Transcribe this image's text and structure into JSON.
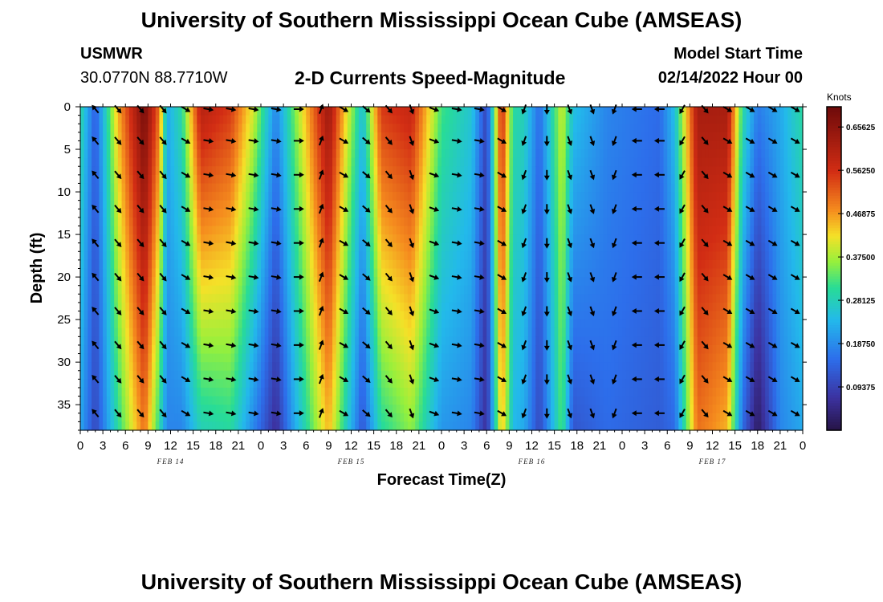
{
  "header": {
    "title": "University of Southern Mississippi Ocean Cube (AMSEAS)",
    "station": "USMWR",
    "coords": "30.0770N  88.7710W",
    "subtitle": "2-D Currents Speed-Magnitude",
    "model_start_label": "Model Start Time",
    "model_start_value": "02/14/2022 Hour 00"
  },
  "footer": {
    "title": "University of Southern Mississippi Ocean Cube (AMSEAS)"
  },
  "chart_data": {
    "type": "heatmap",
    "title": "2-D Currents Speed-Magnitude",
    "xlabel": "Forecast Time(Z)",
    "ylabel": "Depth (ft)",
    "x_hours_range": [
      0,
      96
    ],
    "ylim": [
      38,
      0
    ],
    "x_tick_labels": [
      "0",
      "3",
      "6",
      "9",
      "12",
      "15",
      "18",
      "21",
      "0",
      "3",
      "6",
      "9",
      "12",
      "15",
      "18",
      "21",
      "0",
      "3",
      "6",
      "9",
      "12",
      "15",
      "18",
      "21",
      "0",
      "3",
      "6",
      "9",
      "12",
      "15",
      "18",
      "21",
      "0"
    ],
    "y_ticks": [
      0,
      5,
      10,
      15,
      20,
      25,
      30,
      35
    ],
    "y_tick_labels": [
      "0",
      "5",
      "10",
      "15",
      "20",
      "25",
      "30",
      "35"
    ],
    "date_labels": [
      {
        "text": "FEB 14",
        "hour": 12
      },
      {
        "text": "FEB 15",
        "hour": 36
      },
      {
        "text": "FEB 16",
        "hour": 60
      },
      {
        "text": "FEB 17",
        "hour": 84
      }
    ],
    "colorbar": {
      "unit": "Knots",
      "range": [
        0,
        0.7
      ],
      "tick_values": [
        0.65625,
        0.5625,
        0.46875,
        0.375,
        0.28125,
        0.1875,
        0.09375
      ],
      "tick_labels": [
        "0.65625",
        "0.56250",
        "0.46875",
        "0.37500",
        "0.28125",
        "0.18750",
        "0.09375"
      ]
    },
    "speed_profile_knots": [
      {
        "hour": 0,
        "surface": 0.3,
        "bottom": 0.22
      },
      {
        "hour": 2,
        "surface": 0.13,
        "bottom": 0.1
      },
      {
        "hour": 5,
        "surface": 0.45,
        "bottom": 0.3
      },
      {
        "hour": 8.5,
        "surface": 0.69,
        "bottom": 0.5
      },
      {
        "hour": 10.5,
        "surface": 0.5,
        "bottom": 0.3
      },
      {
        "hour": 11.5,
        "surface": 0.22,
        "bottom": 0.18
      },
      {
        "hour": 13.5,
        "surface": 0.3,
        "bottom": 0.18
      },
      {
        "hour": 16,
        "surface": 0.6,
        "bottom": 0.28
      },
      {
        "hour": 20,
        "surface": 0.55,
        "bottom": 0.3
      },
      {
        "hour": 23,
        "surface": 0.4,
        "bottom": 0.18
      },
      {
        "hour": 26,
        "surface": 0.18,
        "bottom": 0.06
      },
      {
        "hour": 28.5,
        "surface": 0.35,
        "bottom": 0.22
      },
      {
        "hour": 33,
        "surface": 0.64,
        "bottom": 0.45
      },
      {
        "hour": 35,
        "surface": 0.45,
        "bottom": 0.3
      },
      {
        "hour": 37.5,
        "surface": 0.25,
        "bottom": 0.12
      },
      {
        "hour": 40,
        "surface": 0.55,
        "bottom": 0.3
      },
      {
        "hour": 44,
        "surface": 0.58,
        "bottom": 0.36
      },
      {
        "hour": 48,
        "surface": 0.32,
        "bottom": 0.2
      },
      {
        "hour": 52,
        "surface": 0.26,
        "bottom": 0.18
      },
      {
        "hour": 54,
        "surface": 0.09,
        "bottom": 0.06
      },
      {
        "hour": 56,
        "surface": 0.58,
        "bottom": 0.45
      },
      {
        "hour": 57.5,
        "surface": 0.3,
        "bottom": 0.24
      },
      {
        "hour": 59,
        "surface": 0.28,
        "bottom": 0.22
      },
      {
        "hour": 61,
        "surface": 0.15,
        "bottom": 0.1
      },
      {
        "hour": 64,
        "surface": 0.4,
        "bottom": 0.33
      },
      {
        "hour": 65.5,
        "surface": 0.25,
        "bottom": 0.12
      },
      {
        "hour": 70,
        "surface": 0.18,
        "bottom": 0.15
      },
      {
        "hour": 77,
        "surface": 0.15,
        "bottom": 0.13
      },
      {
        "hour": 79,
        "surface": 0.25,
        "bottom": 0.15
      },
      {
        "hour": 82,
        "surface": 0.62,
        "bottom": 0.5
      },
      {
        "hour": 86,
        "surface": 0.62,
        "bottom": 0.45
      },
      {
        "hour": 88,
        "surface": 0.3,
        "bottom": 0.15
      },
      {
        "hour": 90,
        "surface": 0.17,
        "bottom": 0.02
      },
      {
        "hour": 93,
        "surface": 0.22,
        "bottom": 0.18
      },
      {
        "hour": 96,
        "surface": 0.3,
        "bottom": 0.22
      }
    ],
    "vector_hours": [
      2,
      5,
      8,
      11,
      14,
      17,
      20,
      23,
      26,
      29,
      32,
      35,
      38,
      41,
      44,
      47,
      50,
      53,
      56,
      59,
      62,
      65,
      68,
      71,
      74,
      77,
      80,
      83,
      86,
      89,
      92,
      95
    ],
    "vector_depths_ft": [
      0,
      4,
      8,
      12,
      16,
      20,
      24,
      28,
      32,
      36
    ],
    "vector_direction_deg": [
      320,
      140,
      140,
      140,
      120,
      100,
      100,
      100,
      100,
      90,
      20,
      120,
      130,
      140,
      160,
      110,
      100,
      100,
      120,
      200,
      180,
      160,
      160,
      200,
      270,
      270,
      210,
      140,
      120,
      120,
      120,
      120
    ]
  }
}
